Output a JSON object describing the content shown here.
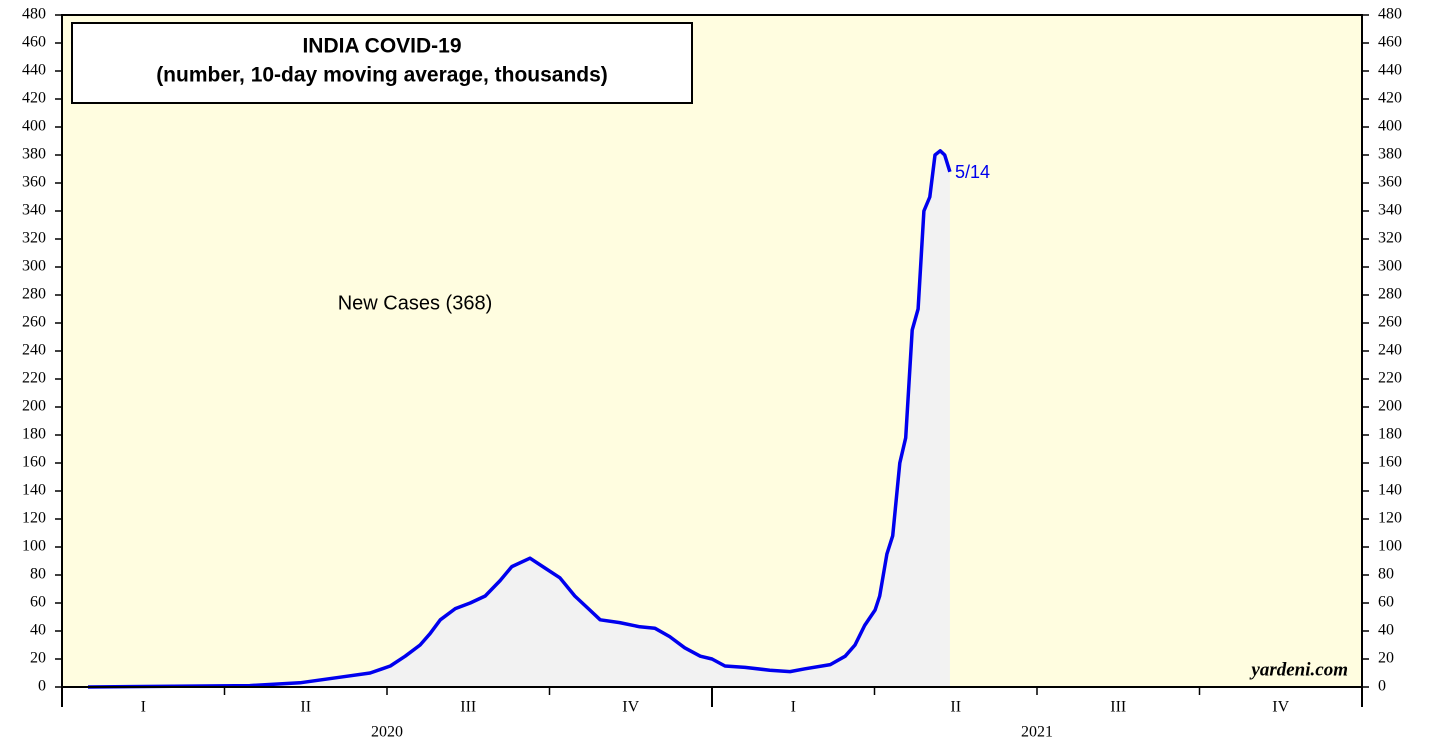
{
  "chart_data": {
    "type": "area-line",
    "title": "INDIA COVID-19",
    "subtitle": "(number, 10-day moving average, thousands)",
    "series_label": "New Cases (368)",
    "end_label": "5/14",
    "source": "yardeni.com",
    "color": "#0000ee",
    "fill": "#f2f2f2",
    "background": "#fffde0",
    "x": [
      2020.04,
      2020.289,
      2020.366,
      2020.428,
      2020.474,
      2020.505,
      2020.528,
      2020.551,
      2020.566,
      2020.582,
      2020.605,
      2020.628,
      2020.651,
      2020.674,
      2020.692,
      2020.72,
      2020.743,
      2020.766,
      2020.789,
      2020.812,
      2020.828,
      2020.858,
      2020.889,
      2020.912,
      2020.935,
      2020.958,
      2020.982,
      2021.0,
      2021.02,
      2021.051,
      2021.089,
      2021.12,
      2021.143,
      2021.182,
      2021.205,
      2021.22,
      2021.235,
      2021.251,
      2021.258,
      2021.269,
      2021.278,
      2021.289,
      2021.298,
      2021.308,
      2021.317,
      2021.326,
      2021.335,
      2021.343,
      2021.351,
      2021.358,
      2021.366
    ],
    "values": [
      0,
      1,
      3,
      7,
      10,
      15,
      22,
      30,
      38,
      48,
      56,
      60,
      65,
      76,
      86,
      92,
      85,
      78,
      65,
      55,
      48,
      46,
      43,
      42,
      36,
      28,
      22,
      20,
      15,
      14,
      12,
      11,
      13,
      16,
      22,
      30,
      44,
      55,
      65,
      95,
      108,
      160,
      178,
      255,
      270,
      340,
      350,
      380,
      383,
      380,
      368
    ],
    "xlim": [
      2020,
      2022
    ],
    "xticks": [
      2020,
      2020.25,
      2020.5,
      2020.75,
      2021,
      2021.25,
      2021.5,
      2021.75,
      2022
    ],
    "quarters": [
      "I",
      "II",
      "III",
      "IV",
      "I",
      "II",
      "III",
      "IV"
    ],
    "years": [
      "2020",
      "2021"
    ],
    "ylim": [
      0,
      480
    ],
    "yticks": [
      0,
      20,
      40,
      60,
      80,
      100,
      120,
      140,
      160,
      180,
      200,
      220,
      240,
      260,
      280,
      300,
      320,
      340,
      360,
      380,
      400,
      420,
      440,
      460,
      480
    ]
  }
}
